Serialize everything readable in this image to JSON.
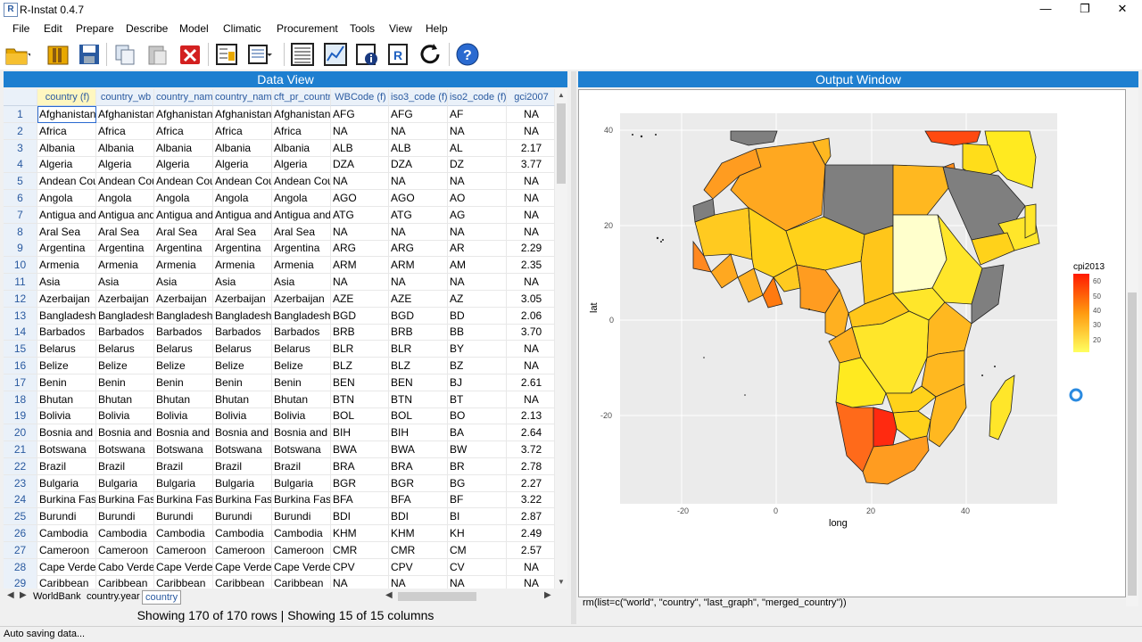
{
  "window": {
    "title": "R-Instat 0.4.7"
  },
  "menu": [
    "File",
    "Edit",
    "Prepare",
    "Describe",
    "Model",
    "Climatic",
    "Procurement",
    "Tools",
    "View",
    "Help"
  ],
  "toolbar_icons": [
    "open-folder-icon",
    "open-library-icon",
    "save-icon",
    "copy-icon",
    "paste-icon",
    "delete-icon",
    "data-frame-metadata-icon",
    "column-metadata-icon",
    "view-data-icon",
    "view-output-icon",
    "info-icon",
    "r-script-icon",
    "refresh-icon",
    "help-icon"
  ],
  "data_view": {
    "title": "Data View",
    "columns": [
      "country (f)",
      "country_wb",
      "country_nam",
      "country_nam",
      "cft_pr_countr",
      "WBCode (f)",
      "iso3_code (f)",
      "iso2_code (f)",
      "gci2007"
    ],
    "rows": [
      [
        "1",
        "Afghanistan",
        "Afghanistan",
        "Afghanistan",
        "Afghanistan",
        "Afghanistan",
        "AFG",
        "AFG",
        "AF",
        "NA"
      ],
      [
        "2",
        "Africa",
        "Africa",
        "Africa",
        "Africa",
        "Africa",
        "NA",
        "NA",
        "NA",
        "NA"
      ],
      [
        "3",
        "Albania",
        "Albania",
        "Albania",
        "Albania",
        "Albania",
        "ALB",
        "ALB",
        "AL",
        "2.17"
      ],
      [
        "4",
        "Algeria",
        "Algeria",
        "Algeria",
        "Algeria",
        "Algeria",
        "DZA",
        "DZA",
        "DZ",
        "3.77"
      ],
      [
        "5",
        "Andean Cou",
        "Andean Cou",
        "Andean Cou",
        "Andean Cou",
        "Andean Cou",
        "NA",
        "NA",
        "NA",
        "NA"
      ],
      [
        "6",
        "Angola",
        "Angola",
        "Angola",
        "Angola",
        "Angola",
        "AGO",
        "AGO",
        "AO",
        "NA"
      ],
      [
        "7",
        "Antigua and",
        "Antigua and",
        "Antigua and",
        "Antigua and",
        "Antigua and",
        "ATG",
        "ATG",
        "AG",
        "NA"
      ],
      [
        "8",
        "Aral Sea",
        "Aral Sea",
        "Aral Sea",
        "Aral Sea",
        "Aral Sea",
        "NA",
        "NA",
        "NA",
        "NA"
      ],
      [
        "9",
        "Argentina",
        "Argentina",
        "Argentina",
        "Argentina",
        "Argentina",
        "ARG",
        "ARG",
        "AR",
        "2.29"
      ],
      [
        "10",
        "Armenia",
        "Armenia",
        "Armenia",
        "Armenia",
        "Armenia",
        "ARM",
        "ARM",
        "AM",
        "2.35"
      ],
      [
        "11",
        "Asia",
        "Asia",
        "Asia",
        "Asia",
        "Asia",
        "NA",
        "NA",
        "NA",
        "NA"
      ],
      [
        "12",
        "Azerbaijan",
        "Azerbaijan",
        "Azerbaijan",
        "Azerbaijan",
        "Azerbaijan",
        "AZE",
        "AZE",
        "AZ",
        "3.05"
      ],
      [
        "13",
        "Bangladesh",
        "Bangladesh",
        "Bangladesh",
        "Bangladesh",
        "Bangladesh",
        "BGD",
        "BGD",
        "BD",
        "2.06"
      ],
      [
        "14",
        "Barbados",
        "Barbados",
        "Barbados",
        "Barbados",
        "Barbados",
        "BRB",
        "BRB",
        "BB",
        "3.70"
      ],
      [
        "15",
        "Belarus",
        "Belarus",
        "Belarus",
        "Belarus",
        "Belarus",
        "BLR",
        "BLR",
        "BY",
        "NA"
      ],
      [
        "16",
        "Belize",
        "Belize",
        "Belize",
        "Belize",
        "Belize",
        "BLZ",
        "BLZ",
        "BZ",
        "NA"
      ],
      [
        "17",
        "Benin",
        "Benin",
        "Benin",
        "Benin",
        "Benin",
        "BEN",
        "BEN",
        "BJ",
        "2.61"
      ],
      [
        "18",
        "Bhutan",
        "Bhutan",
        "Bhutan",
        "Bhutan",
        "Bhutan",
        "BTN",
        "BTN",
        "BT",
        "NA"
      ],
      [
        "19",
        "Bolivia",
        "Bolivia",
        "Bolivia",
        "Bolivia",
        "Bolivia",
        "BOL",
        "BOL",
        "BO",
        "2.13"
      ],
      [
        "20",
        "Bosnia and",
        "Bosnia and",
        "Bosnia and",
        "Bosnia and",
        "Bosnia and",
        "BIH",
        "BIH",
        "BA",
        "2.64"
      ],
      [
        "21",
        "Botswana",
        "Botswana",
        "Botswana",
        "Botswana",
        "Botswana",
        "BWA",
        "BWA",
        "BW",
        "3.72"
      ],
      [
        "22",
        "Brazil",
        "Brazil",
        "Brazil",
        "Brazil",
        "Brazil",
        "BRA",
        "BRA",
        "BR",
        "2.78"
      ],
      [
        "23",
        "Bulgaria",
        "Bulgaria",
        "Bulgaria",
        "Bulgaria",
        "Bulgaria",
        "BGR",
        "BGR",
        "BG",
        "2.27"
      ],
      [
        "24",
        "Burkina Fas",
        "Burkina Fas",
        "Burkina Fas",
        "Burkina Fas",
        "Burkina Fas",
        "BFA",
        "BFA",
        "BF",
        "3.22"
      ],
      [
        "25",
        "Burundi",
        "Burundi",
        "Burundi",
        "Burundi",
        "Burundi",
        "BDI",
        "BDI",
        "BI",
        "2.87"
      ],
      [
        "26",
        "Cambodia",
        "Cambodia",
        "Cambodia",
        "Cambodia",
        "Cambodia",
        "KHM",
        "KHM",
        "KH",
        "2.49"
      ],
      [
        "27",
        "Cameroon",
        "Cameroon",
        "Cameroon",
        "Cameroon",
        "Cameroon",
        "CMR",
        "CMR",
        "CM",
        "2.57"
      ],
      [
        "28",
        "Cape Verde",
        "Cabo Verde",
        "Cape Verde",
        "Cape Verde",
        "Cape Verde",
        "CPV",
        "CPV",
        "CV",
        "NA"
      ],
      [
        "29",
        "Caribbean",
        "Caribbean",
        "Caribbean",
        "Caribbean",
        "Caribbean",
        "NA",
        "NA",
        "NA",
        "NA"
      ]
    ],
    "sheet_tabs": [
      "WorldBank",
      "country.year",
      "country"
    ],
    "active_sheet": "country",
    "summary": "Showing 170 of 170 rows | Showing 15 of 15 columns"
  },
  "output": {
    "title": "Output Window",
    "command": "rm(list=c(\"world\", \"country\", \"last_graph\", \"merged_country\"))",
    "plot": {
      "xlabel": "long",
      "ylabel": "lat",
      "x_ticks": [
        "-20",
        "0",
        "20",
        "40"
      ],
      "y_ticks": [
        "40",
        "20",
        "0",
        "-20"
      ],
      "legend_title": "cpi2013",
      "legend_ticks": [
        "60",
        "50",
        "40",
        "30",
        "20"
      ],
      "colors": {
        "panel_bg": "#ebebeb",
        "na_fill": "#7f7f7f",
        "low": "#ffff66",
        "high": "#ff2200"
      }
    }
  },
  "status": {
    "text": "Auto saving data..."
  },
  "colors": {
    "header_blue": "#1e7fd0",
    "grid_header_text": "#2a5aa0"
  }
}
